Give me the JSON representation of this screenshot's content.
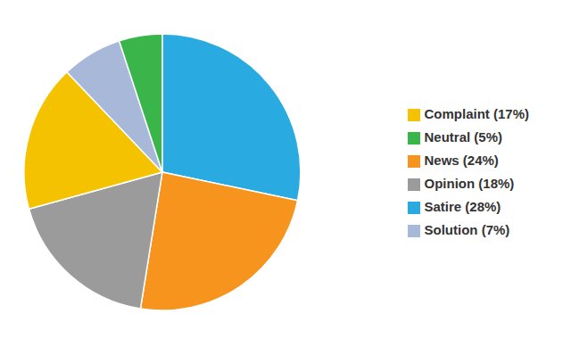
{
  "chart_data": {
    "type": "pie",
    "categories": [
      "Satire (28%)",
      "News (24%)",
      "Opinion (18%)",
      "Complaint (17%)",
      "Solution (7%)",
      "Neutral (5%)"
    ],
    "values": [
      28,
      24,
      18,
      17,
      7,
      5
    ],
    "colors": [
      "#29ABE2",
      "#F7941D",
      "#9B9B9B",
      "#F5C200",
      "#A8B8D8",
      "#39B54A"
    ],
    "legend": "right"
  }
}
